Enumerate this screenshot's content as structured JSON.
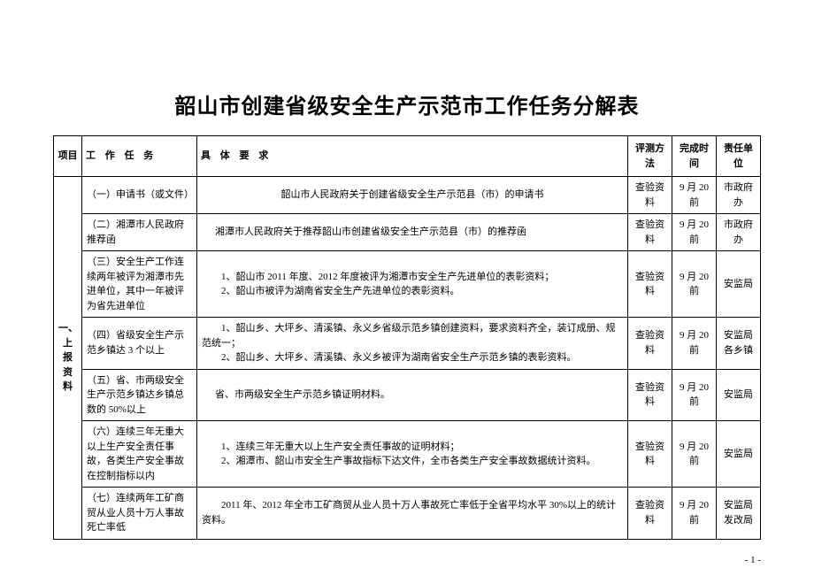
{
  "title": "韶山市创建省级安全生产示范市工作任务分解表",
  "headers": {
    "project": "项目",
    "task": "工 作 任 务",
    "requirement": "具 体 要 求",
    "method": "评测方法",
    "time": "完成时间",
    "unit": "责任单位"
  },
  "section_label": "一、上报资料",
  "rows": [
    {
      "task": "（一）申请书（或文件）",
      "requirement": "韶山市人民政府关于创建省级安全生产示范县（市）的申请书",
      "method": "查验资料",
      "time": "9 月 20 前",
      "unit": "市政府办"
    },
    {
      "task": "（二）湘潭市人民政府推荐函",
      "requirement": "湘潭市人民政府关于推荐韶山市创建省级安全生产示范县（市）的推荐函",
      "method": "查验资料",
      "time": "9 月 20 前",
      "unit": "市政府办"
    },
    {
      "task": "（三）安全生产工作连续两年被评为湘潭市先进单位，其中一年被评为省先进单位",
      "requirement": "　　1、韶山市 2011 年度、2012 年度被评为湘潭市安全生产先进单位的表彰资料；\n　　2、韶山市被评为湖南省安全生产先进单位的表彰资料。",
      "method": "查验资料",
      "time": "9 月 20 前",
      "unit": "安监局"
    },
    {
      "task": "（四）省级安全生产示范乡镇达 3 个以上",
      "requirement": "　　1、韶山乡、大坪乡、清溪镇、永义乡省级示范乡镇创建资料，要求资料齐全，装订成册、规范统一；\n　　2、韶山乡、大坪乡、清溪镇、永义乡被评为湖南省安全生产示范乡镇的表彰资料。",
      "method": "查验资料",
      "time": "9 月 20 前",
      "unit": "安监局 各乡镇"
    },
    {
      "task": "（五）省、市两级安全生产示范乡镇达乡镇总数的 50%以上",
      "requirement": "省、市两级安全生产示范乡镇证明材料。",
      "method": "查验资料",
      "time": "9 月 20 前",
      "unit": "安监局"
    },
    {
      "task": "（六）连续三年无重大以上生产安全责任事故，各类生产安全事故在控制指标以内",
      "requirement": "　　1、连续三年无重大以上生产安全责任事故的证明材料；\n　　2、湘潭市、韶山市安全生产事故指标下达文件，全市各类生产安全事故数据统计资料。",
      "method": "查验资料",
      "time": "9 月 20 前",
      "unit": "安监局"
    },
    {
      "task": "（七）连续两年工矿商贸从业人员十万人事故死亡率低",
      "requirement": "　　2011 年、2012 年全市工矿商贸从业人员十万人事故死亡率低于全省平均水平 30%以上的统计资料。",
      "method": "查验资料",
      "time": "9 月 20 前",
      "unit": "安监局 发改局"
    }
  ],
  "page_number": "- 1 -",
  "styling": {
    "title_fontsize": 24,
    "body_fontsize": 11,
    "border_color": "#000000",
    "background_color": "#ffffff",
    "font_family": "SimSun"
  }
}
